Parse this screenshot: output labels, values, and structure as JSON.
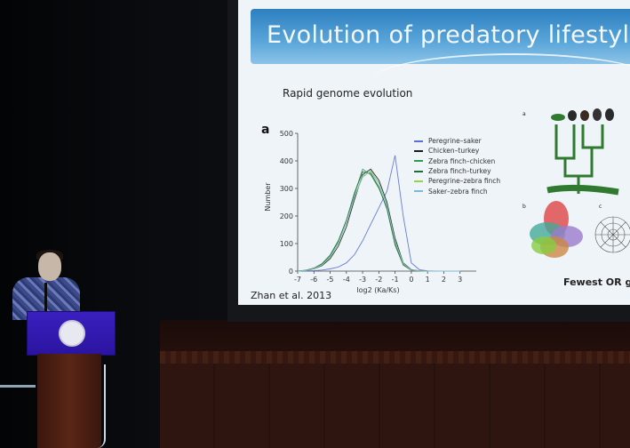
{
  "slide": {
    "title": "Evolution of predatory lifestyle",
    "subtitle": "Rapid genome evolution",
    "panel_letter": "a",
    "citation": "Zhan et al. 2013",
    "side_caption": "Fewest OR g",
    "side_panel_labels": [
      "a",
      "b",
      "c"
    ]
  },
  "chart_data": {
    "type": "line",
    "xlabel": "log2 (Ka/Ks)",
    "ylabel": "Number",
    "xlim": [
      -7,
      4
    ],
    "ylim": [
      0,
      500
    ],
    "xticks": [
      -7,
      -6,
      -5,
      -4,
      -3,
      -2,
      -1,
      0,
      1,
      2,
      3
    ],
    "yticks": [
      0,
      100,
      200,
      300,
      400,
      500
    ],
    "x": [
      -7,
      -6.5,
      -6,
      -5.5,
      -5,
      -4.5,
      -4,
      -3.5,
      -3,
      -2.5,
      -2,
      -1.5,
      -1,
      -0.5,
      0,
      0.5,
      1,
      1.5,
      2,
      2.5,
      3
    ],
    "series": [
      {
        "name": "Peregrine–saker",
        "color": "#5b6fd6",
        "values": [
          0,
          1,
          2,
          4,
          8,
          15,
          30,
          60,
          110,
          170,
          230,
          290,
          420,
          200,
          30,
          5,
          1,
          0,
          0,
          0,
          0
        ]
      },
      {
        "name": "Chicken–turkey",
        "color": "#1a1a1a",
        "values": [
          0,
          2,
          8,
          20,
          45,
          90,
          160,
          260,
          350,
          370,
          330,
          250,
          120,
          30,
          5,
          1,
          0,
          0,
          0,
          0,
          0
        ]
      },
      {
        "name": "Zebra finch–chicken",
        "color": "#2e9c4a",
        "values": [
          0,
          3,
          10,
          25,
          55,
          105,
          180,
          280,
          370,
          350,
          300,
          230,
          100,
          25,
          4,
          1,
          0,
          0,
          0,
          0,
          0
        ]
      },
      {
        "name": "Zebra finch–turkey",
        "color": "#1f6b3a",
        "values": [
          0,
          3,
          11,
          27,
          58,
          110,
          185,
          285,
          360,
          355,
          305,
          225,
          95,
          22,
          3,
          1,
          0,
          0,
          0,
          0,
          0
        ]
      },
      {
        "name": "Peregrine–zebra finch",
        "color": "#9bd04a",
        "values": [
          0,
          2,
          9,
          22,
          50,
          100,
          175,
          270,
          340,
          365,
          320,
          240,
          110,
          28,
          4,
          1,
          0,
          0,
          0,
          0,
          0
        ]
      },
      {
        "name": "Saker–zebra finch",
        "color": "#7fb8d8",
        "values": [
          0,
          2,
          9,
          23,
          52,
          102,
          178,
          272,
          345,
          360,
          318,
          238,
          108,
          27,
          4,
          1,
          0,
          0,
          0,
          0,
          0
        ]
      }
    ],
    "legend_position": "top-right"
  },
  "colors": {
    "header_blue": "#2d7fc0",
    "podium_blue": "#3a1fbf",
    "stage_wood": "#2e1510"
  }
}
